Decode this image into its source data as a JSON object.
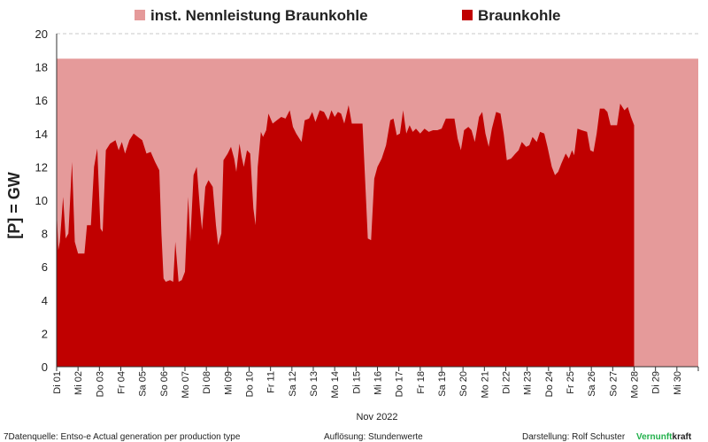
{
  "chart_data": {
    "type": "area",
    "ylabel": "[P]  = GW",
    "xlabel": "Nov 2022",
    "ylim": [
      0,
      20
    ],
    "yticks": [
      0,
      2,
      4,
      6,
      8,
      10,
      12,
      14,
      16,
      18,
      20
    ],
    "grid": true,
    "legend_position": "top",
    "x_days": 30,
    "categories": [
      "Di 01",
      "Mi 02",
      "Do 03",
      "Fr 04",
      "Sa 05",
      "So 06",
      "Mo 07",
      "Di 08",
      "Mi 09",
      "Do 10",
      "Fr 11",
      "Sa 12",
      "So 13",
      "Mo 14",
      "Di 15",
      "Mi 16",
      "Do 17",
      "Fr 18",
      "Sa 19",
      "So 20",
      "Mo 21",
      "Di 22",
      "Mi 23",
      "Do 24",
      "Fr 25",
      "Sa 26",
      "So 27",
      "Mo 28",
      "Di 29",
      "Mi 30"
    ],
    "series": [
      {
        "name": "inst. Nennleistung Braunkohle",
        "color": "#e59a9a",
        "points": [
          [
            0,
            18.5
          ],
          [
            30,
            18.5
          ]
        ]
      },
      {
        "name": "Braunkohle",
        "color": "#c00000",
        "points": [
          [
            0.0,
            9.5
          ],
          [
            0.08,
            7.0
          ],
          [
            0.15,
            7.5
          ],
          [
            0.3,
            10.2
          ],
          [
            0.42,
            7.7
          ],
          [
            0.55,
            8.0
          ],
          [
            0.72,
            12.3
          ],
          [
            0.85,
            7.5
          ],
          [
            1.0,
            6.8
          ],
          [
            1.15,
            6.8
          ],
          [
            1.3,
            6.8
          ],
          [
            1.42,
            8.5
          ],
          [
            1.6,
            8.5
          ],
          [
            1.75,
            12.0
          ],
          [
            1.9,
            13.1
          ],
          [
            2.05,
            8.3
          ],
          [
            2.15,
            8.1
          ],
          [
            2.3,
            13.0
          ],
          [
            2.5,
            13.4
          ],
          [
            2.75,
            13.6
          ],
          [
            2.9,
            13.0
          ],
          [
            3.05,
            13.5
          ],
          [
            3.2,
            12.8
          ],
          [
            3.4,
            13.6
          ],
          [
            3.6,
            14.0
          ],
          [
            3.8,
            13.8
          ],
          [
            4.0,
            13.6
          ],
          [
            4.2,
            12.8
          ],
          [
            4.4,
            12.9
          ],
          [
            4.6,
            12.3
          ],
          [
            4.8,
            11.8
          ],
          [
            4.9,
            8.0
          ],
          [
            5.0,
            5.3
          ],
          [
            5.1,
            5.1
          ],
          [
            5.3,
            5.2
          ],
          [
            5.45,
            5.1
          ],
          [
            5.55,
            7.5
          ],
          [
            5.7,
            5.1
          ],
          [
            5.85,
            5.2
          ],
          [
            6.0,
            5.7
          ],
          [
            6.15,
            10.2
          ],
          [
            6.25,
            7.5
          ],
          [
            6.4,
            11.5
          ],
          [
            6.55,
            12.0
          ],
          [
            6.7,
            9.5
          ],
          [
            6.8,
            8.2
          ],
          [
            6.95,
            10.8
          ],
          [
            7.1,
            11.2
          ],
          [
            7.3,
            10.8
          ],
          [
            7.45,
            8.5
          ],
          [
            7.55,
            7.3
          ],
          [
            7.7,
            8.0
          ],
          [
            7.8,
            12.4
          ],
          [
            8.0,
            12.8
          ],
          [
            8.15,
            13.2
          ],
          [
            8.3,
            12.5
          ],
          [
            8.4,
            11.7
          ],
          [
            8.55,
            13.4
          ],
          [
            8.65,
            12.6
          ],
          [
            8.75,
            12.0
          ],
          [
            8.9,
            13.0
          ],
          [
            9.05,
            12.8
          ],
          [
            9.2,
            9.5
          ],
          [
            9.3,
            8.5
          ],
          [
            9.4,
            12.0
          ],
          [
            9.55,
            14.1
          ],
          [
            9.65,
            13.8
          ],
          [
            9.8,
            14.2
          ],
          [
            9.9,
            15.2
          ],
          [
            10.1,
            14.6
          ],
          [
            10.3,
            14.8
          ],
          [
            10.5,
            15.0
          ],
          [
            10.7,
            14.9
          ],
          [
            10.9,
            15.4
          ],
          [
            11.05,
            14.4
          ],
          [
            11.2,
            14.0
          ],
          [
            11.45,
            13.5
          ],
          [
            11.6,
            14.8
          ],
          [
            11.8,
            14.9
          ],
          [
            11.95,
            15.3
          ],
          [
            12.1,
            14.7
          ],
          [
            12.3,
            15.4
          ],
          [
            12.5,
            15.3
          ],
          [
            12.7,
            14.8
          ],
          [
            12.85,
            15.4
          ],
          [
            13.0,
            15.0
          ],
          [
            13.15,
            15.3
          ],
          [
            13.3,
            15.2
          ],
          [
            13.45,
            14.6
          ],
          [
            13.65,
            15.7
          ],
          [
            13.8,
            14.6
          ],
          [
            14.05,
            14.6
          ],
          [
            14.3,
            14.6
          ],
          [
            14.45,
            10.5
          ],
          [
            14.55,
            7.7
          ],
          [
            14.7,
            7.6
          ],
          [
            14.85,
            11.3
          ],
          [
            15.0,
            12.0
          ],
          [
            15.2,
            12.5
          ],
          [
            15.4,
            13.3
          ],
          [
            15.6,
            14.8
          ],
          [
            15.75,
            14.9
          ],
          [
            15.9,
            13.9
          ],
          [
            16.05,
            14.0
          ],
          [
            16.2,
            15.4
          ],
          [
            16.35,
            14.0
          ],
          [
            16.5,
            14.5
          ],
          [
            16.65,
            14.1
          ],
          [
            16.8,
            14.3
          ],
          [
            17.0,
            14.0
          ],
          [
            17.2,
            14.3
          ],
          [
            17.4,
            14.1
          ],
          [
            17.6,
            14.2
          ],
          [
            17.8,
            14.2
          ],
          [
            18.0,
            14.3
          ],
          [
            18.2,
            14.9
          ],
          [
            18.4,
            14.9
          ],
          [
            18.6,
            14.9
          ],
          [
            18.75,
            13.7
          ],
          [
            18.9,
            13.0
          ],
          [
            19.05,
            14.2
          ],
          [
            19.25,
            14.4
          ],
          [
            19.4,
            14.2
          ],
          [
            19.55,
            13.5
          ],
          [
            19.75,
            15.0
          ],
          [
            19.9,
            15.3
          ],
          [
            20.05,
            14.0
          ],
          [
            20.2,
            13.2
          ],
          [
            20.35,
            14.3
          ],
          [
            20.55,
            15.3
          ],
          [
            20.75,
            15.2
          ],
          [
            20.9,
            14.0
          ],
          [
            21.05,
            12.4
          ],
          [
            21.25,
            12.5
          ],
          [
            21.45,
            12.8
          ],
          [
            21.6,
            13.0
          ],
          [
            21.75,
            13.5
          ],
          [
            21.95,
            13.2
          ],
          [
            22.1,
            13.3
          ],
          [
            22.25,
            13.8
          ],
          [
            22.45,
            13.5
          ],
          [
            22.6,
            14.1
          ],
          [
            22.8,
            14.0
          ],
          [
            22.95,
            13.2
          ],
          [
            23.15,
            12.0
          ],
          [
            23.3,
            11.5
          ],
          [
            23.45,
            11.7
          ],
          [
            23.6,
            12.2
          ],
          [
            23.8,
            12.8
          ],
          [
            23.95,
            12.5
          ],
          [
            24.1,
            13.0
          ],
          [
            24.2,
            12.7
          ],
          [
            24.35,
            14.3
          ],
          [
            24.55,
            14.2
          ],
          [
            24.8,
            14.1
          ],
          [
            24.95,
            13.0
          ],
          [
            25.1,
            12.9
          ],
          [
            25.25,
            14.0
          ],
          [
            25.4,
            15.5
          ],
          [
            25.6,
            15.5
          ],
          [
            25.75,
            15.3
          ],
          [
            25.9,
            14.5
          ],
          [
            26.05,
            14.5
          ],
          [
            26.2,
            14.5
          ],
          [
            26.35,
            15.8
          ],
          [
            26.55,
            15.4
          ],
          [
            26.7,
            15.6
          ],
          [
            26.85,
            15.0
          ],
          [
            27.0,
            14.5
          ]
        ]
      }
    ]
  },
  "footer": {
    "source": "7Datenquelle: Entso-e  Actual generation per production type",
    "resolution": "Auflösung: Stundenwerte",
    "author_prefix": "Darstellung:  Rolf Schuster",
    "brand_green": "Vernunft",
    "brand_rest": "kraft"
  }
}
